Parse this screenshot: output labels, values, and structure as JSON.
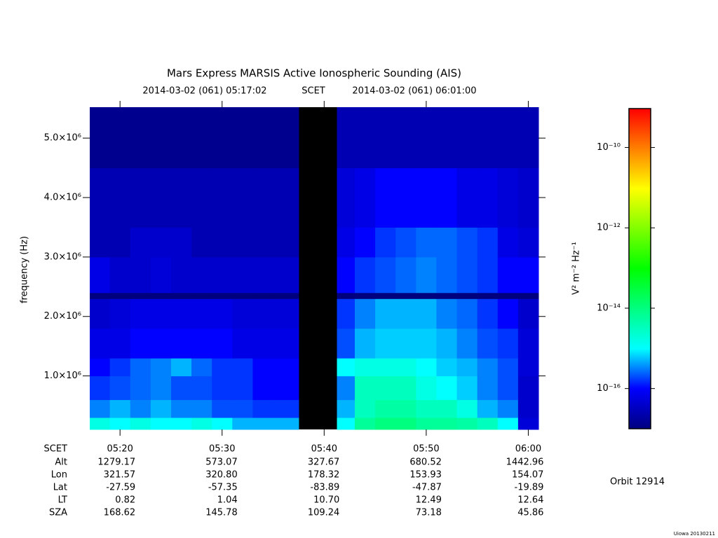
{
  "chart_data": {
    "type": "spectrogram",
    "title": "Mars Express MARSIS Active Ionospheric Sounding (AIS)",
    "start": "2014-03-02 (061) 05:17:02",
    "scet": "SCET",
    "end": "2014-03-02 (061) 06:01:00",
    "y_label": "frequency (Hz)",
    "ylim": [
      100000,
      5520000
    ],
    "yticks": [
      {
        "value": 1000000,
        "label": "1.0×10⁶"
      },
      {
        "value": 2000000,
        "label": "2.0×10⁶"
      },
      {
        "value": 3000000,
        "label": "3.0×10⁶"
      },
      {
        "value": 4000000,
        "label": "4.0×10⁶"
      },
      {
        "value": 5000000,
        "label": "5.0×10⁶"
      }
    ],
    "xticks": [
      "05:20",
      "05:30",
      "05:40",
      "05:50",
      "06:00"
    ],
    "time_bins": [
      "05:17:02",
      "05:19",
      "05:21",
      "05:23",
      "05:25",
      "05:27",
      "05:29",
      "05:31",
      "05:33",
      "05:35",
      "05:37:30",
      "05:41:15",
      "05:43",
      "05:45",
      "05:47",
      "05:49",
      "05:51",
      "05:53",
      "05:55",
      "05:57",
      "05:59",
      "06:01:00"
    ],
    "freq_bins": [
      100000,
      300000,
      600000,
      1000000,
      1300000,
      1800000,
      2300000,
      2400000,
      3000000,
      3500000,
      4500000,
      5520000
    ],
    "z": [
      [
        1.6e-15,
        1e-15,
        1.6e-15,
        1e-15,
        1e-15,
        1.6e-15,
        1e-15,
        5e-16,
        5e-16,
        5e-16,
        null,
        1e-15,
        6.3e-15,
        1e-14,
        1e-14,
        6.3e-15,
        6.3e-15,
        5e-15,
        3.2e-15,
        1e-15,
        5e-17
      ],
      [
        3.2e-16,
        5e-16,
        3.2e-16,
        5e-16,
        3.2e-16,
        3.2e-16,
        2e-16,
        2e-16,
        1.6e-16,
        1.6e-16,
        null,
        5e-16,
        3.2e-15,
        5e-15,
        5e-15,
        3.2e-15,
        3.2e-15,
        1.6e-15,
        5e-16,
        3.2e-16,
        4e-17
      ],
      [
        1.6e-16,
        2e-16,
        2.5e-16,
        3.2e-16,
        2e-16,
        2e-16,
        1.6e-16,
        1.6e-16,
        1e-16,
        1e-16,
        null,
        3.2e-16,
        3.2e-15,
        3.2e-15,
        3.2e-15,
        1.6e-15,
        1e-15,
        6.3e-16,
        3.2e-16,
        2e-16,
        4e-17
      ],
      [
        1e-16,
        1.6e-16,
        2.5e-16,
        3.2e-16,
        5e-16,
        2.5e-16,
        1.6e-16,
        1.6e-16,
        1e-16,
        1e-16,
        null,
        1e-15,
        1.6e-15,
        1.6e-15,
        1.6e-15,
        1e-15,
        6.3e-16,
        5e-16,
        3.2e-16,
        2e-16,
        5e-17
      ],
      [
        6.3e-17,
        6.3e-17,
        1e-16,
        1e-16,
        1e-16,
        1e-16,
        1e-16,
        6.3e-17,
        6.3e-17,
        6.3e-17,
        null,
        2e-16,
        5e-16,
        6.3e-16,
        6.3e-16,
        6.3e-16,
        5e-16,
        3.2e-16,
        2e-16,
        1.6e-16,
        5e-17
      ],
      [
        4e-17,
        5e-17,
        6.3e-17,
        6.3e-17,
        6.3e-17,
        6.3e-17,
        6.3e-17,
        5e-17,
        5e-17,
        5e-17,
        null,
        1.6e-16,
        3.2e-16,
        5e-16,
        5e-16,
        5e-16,
        3.2e-16,
        2.5e-16,
        1.6e-16,
        1e-16,
        4e-17
      ],
      [
        1e-17,
        1e-17,
        1e-17,
        1e-17,
        1e-17,
        1e-17,
        1e-17,
        1e-17,
        1e-17,
        1e-17,
        null,
        1e-17,
        1e-17,
        1e-17,
        1e-17,
        1e-17,
        1e-17,
        1e-17,
        1e-17,
        1e-17,
        1e-17
      ],
      [
        6.3e-17,
        4e-17,
        4e-17,
        5e-17,
        4e-17,
        4e-17,
        4e-17,
        4e-17,
        4e-17,
        4e-17,
        null,
        1e-16,
        1.6e-16,
        2e-16,
        2.5e-16,
        3.2e-16,
        2.5e-16,
        2e-16,
        1.6e-16,
        1e-16,
        1e-16
      ],
      [
        2.5e-17,
        2.5e-17,
        4e-17,
        4e-17,
        4e-17,
        2.5e-17,
        2.5e-17,
        2.5e-17,
        2.5e-17,
        2.5e-17,
        null,
        6.3e-17,
        1e-16,
        1.6e-16,
        2e-16,
        2.5e-16,
        2.5e-16,
        2e-16,
        1.6e-16,
        6.3e-17,
        5e-17
      ],
      [
        2.5e-17,
        2.5e-17,
        2.5e-17,
        2.5e-17,
        2.5e-17,
        2.5e-17,
        2.5e-17,
        2.5e-17,
        2.5e-17,
        2.5e-17,
        null,
        5e-17,
        6.3e-17,
        1e-16,
        1e-16,
        1e-16,
        1e-16,
        6.3e-17,
        6.3e-17,
        5e-17,
        4e-17
      ],
      [
        1.3e-17,
        1.3e-17,
        1.3e-17,
        1.3e-17,
        1.3e-17,
        1.3e-17,
        1.3e-17,
        1.3e-17,
        1.3e-17,
        1.3e-17,
        null,
        2.5e-17,
        2.5e-17,
        2.5e-17,
        2.5e-17,
        2.5e-17,
        2.5e-17,
        2.5e-17,
        2.5e-17,
        2.5e-17,
        2.5e-17
      ]
    ],
    "log_color": true,
    "clim": [
      1e-17,
      9.3e-10
    ],
    "cticks": [
      {
        "value": 1e-16,
        "label": "10⁻¹⁶"
      },
      {
        "value": 1e-14,
        "label": "10⁻¹⁴"
      },
      {
        "value": 1e-12,
        "label": "10⁻¹²"
      },
      {
        "value": 1e-10,
        "label": "10⁻¹⁰"
      }
    ],
    "colorbar_label": "V² m⁻² Hz⁻¹",
    "colormap": [
      "#00007f",
      "#0000ff",
      "#00ffff",
      "#00ff80",
      "#00ff00",
      "#80ff00",
      "#ffff00",
      "#ff8000",
      "#ff0000"
    ],
    "gap_color": "#000000",
    "ephemeris": {
      "labels": [
        "SCET",
        "Alt",
        "Lon",
        "Lat",
        "LT",
        "SZA"
      ],
      "rows": [
        [
          "1279.17",
          "573.07",
          "327.67",
          "680.52",
          "1442.96"
        ],
        [
          "321.57",
          "320.80",
          "178.32",
          "153.93",
          "154.07"
        ],
        [
          "-27.59",
          "-57.35",
          "-83.89",
          "-47.87",
          "-19.89"
        ],
        [
          "0.82",
          "1.04",
          "10.70",
          "12.49",
          "12.64"
        ],
        [
          "168.62",
          "145.78",
          "109.24",
          "73.18",
          "45.86"
        ]
      ]
    },
    "orbit": "Orbit 12914",
    "credit": "Uiowa 20130211"
  }
}
